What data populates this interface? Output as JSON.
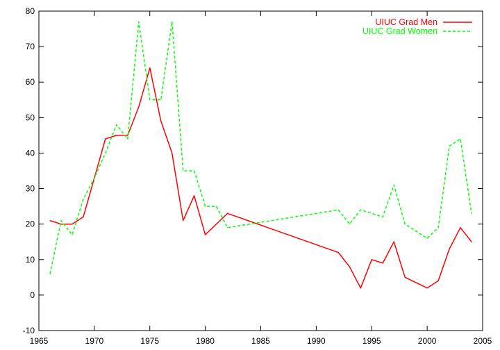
{
  "chart_data": {
    "type": "line",
    "title": "",
    "xlabel": "",
    "ylabel": "",
    "xlim": [
      1965,
      2005
    ],
    "ylim": [
      -10,
      80
    ],
    "xticks": [
      1965,
      1970,
      1975,
      1980,
      1985,
      1990,
      1995,
      2000,
      2005
    ],
    "yticks": [
      -10,
      0,
      10,
      20,
      30,
      40,
      50,
      60,
      70,
      80
    ],
    "grid": false,
    "legend_position": "top-right",
    "series": [
      {
        "name": "UIUC Grad Men",
        "color": "#ff0000",
        "dash": "solid",
        "x": [
          1966,
          1967,
          1968,
          1969,
          1970,
          1971,
          1972,
          1973,
          1974,
          1975,
          1976,
          1977,
          1978,
          1979,
          1980,
          1982,
          1992,
          1993,
          1994,
          1995,
          1996,
          1997,
          1998,
          2000,
          2001,
          2002,
          2003,
          2004
        ],
        "y": [
          21,
          20,
          20,
          22,
          33,
          44,
          45,
          45,
          53,
          64,
          49,
          40,
          21,
          28,
          17,
          23,
          12,
          8,
          2,
          10,
          9,
          15,
          5,
          2,
          4,
          13,
          19,
          15
        ]
      },
      {
        "name": "UIUC Grad Women",
        "color": "#00ff00",
        "dash": "dashed",
        "x": [
          1966,
          1967,
          1968,
          1969,
          1970,
          1971,
          1972,
          1973,
          1974,
          1975,
          1976,
          1977,
          1978,
          1979,
          1980,
          1981,
          1982,
          1992,
          1993,
          1994,
          1996,
          1997,
          1998,
          2000,
          2001,
          2002,
          2003,
          2004
        ],
        "y": [
          6,
          21,
          17,
          27,
          33,
          40,
          48,
          44,
          77,
          55,
          55,
          77,
          35,
          35,
          25,
          25,
          19,
          24,
          20,
          24,
          22,
          31,
          20,
          16,
          19,
          42,
          44,
          23
        ]
      }
    ]
  }
}
